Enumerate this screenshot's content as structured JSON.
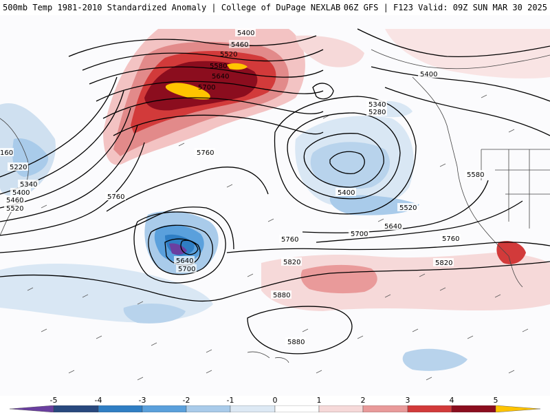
{
  "header": {
    "title": "500mb Temp 1981-2010 Standardized Anomaly | College of DuPage NEXLAB",
    "run_info": "06Z GFS | F123 Valid: 09Z SUN MAR 30 2025"
  },
  "legend": {
    "ticks": [
      "-5",
      "-4",
      "-3",
      "-2",
      "-1",
      "0",
      "1",
      "2",
      "3",
      "4",
      "5"
    ],
    "colors": [
      "#6a3fa0",
      "#28487e",
      "#2f7ec4",
      "#5aa0dc",
      "#a9cbea",
      "#dde9f4",
      "#ffffff",
      "#f6d9d9",
      "#e99a9a",
      "#d23a3a",
      "#8b0d1e",
      "#ffc400"
    ]
  },
  "contours": {
    "labels": [
      "5400",
      "5460",
      "5520",
      "5580",
      "5640",
      "5700",
      "5760",
      "5220",
      "5340",
      "5400",
      "5460",
      "5520",
      "160",
      "5760",
      "5340",
      "5280",
      "5400",
      "5400",
      "5520",
      "5580",
      "5640",
      "5700",
      "5760",
      "5820",
      "5820",
      "5760",
      "5640",
      "5700",
      "5880",
      "5880"
    ]
  }
}
